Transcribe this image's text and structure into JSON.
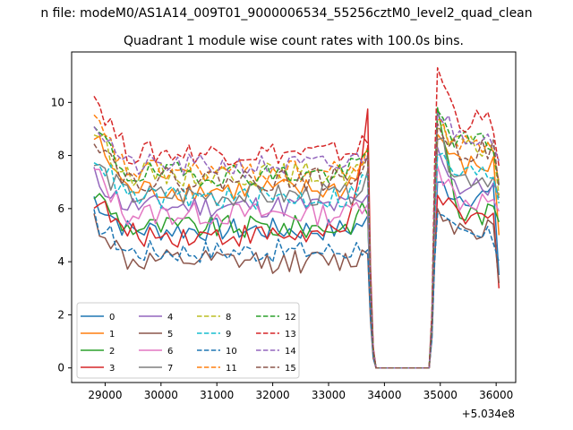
{
  "figure": {
    "suptitle": "n file: modeM0/AS1A14_009T01_9000006534_55256cztM0_level2_quad_clean",
    "offset_label": "+5.034e8"
  },
  "chart_data": {
    "type": "line",
    "title": "Quadrant 1 module wise count rates with 100.0s bins.",
    "xlabel": "",
    "ylabel": "",
    "x_offset": 503400000,
    "xlim": [
      28400,
      36350
    ],
    "ylim": [
      -0.55,
      11.9
    ],
    "xticks": [
      29000,
      30000,
      31000,
      32000,
      33000,
      34000,
      35000,
      36000
    ],
    "xtick_labels": [
      "29000",
      "30000",
      "31000",
      "32000",
      "33000",
      "34000",
      "35000",
      "36000"
    ],
    "yticks": [
      0,
      2,
      4,
      6,
      8,
      10
    ],
    "ytick_labels": [
      "0",
      "2",
      "4",
      "6",
      "8",
      "10"
    ],
    "grid": false,
    "legend_placement": "lower-left",
    "legend_columns": 4,
    "series": [
      {
        "name": "0",
        "color": "#1f77b4",
        "style": "solid",
        "level_first": 6.4,
        "level_main": 5.2,
        "level_end": 5.5,
        "level_second": 6.5,
        "spike": 7.0,
        "last": 3.5
      },
      {
        "name": "1",
        "color": "#ff7f0e",
        "style": "solid",
        "level_first": 8.7,
        "level_main": 6.7,
        "level_end": 8.2,
        "level_second": 7.6,
        "spike": 8.8,
        "last": 5.0
      },
      {
        "name": "2",
        "color": "#2ca02c",
        "style": "solid",
        "level_first": 6.6,
        "level_main": 5.3,
        "level_end": 6.0,
        "level_second": 5.8,
        "spike": 9.8,
        "last": 5.5
      },
      {
        "name": "3",
        "color": "#d62728",
        "style": "solid",
        "level_first": 6.4,
        "level_main": 5.0,
        "level_end": 9.3,
        "level_second": 5.6,
        "spike": 6.5,
        "last": 3.0
      },
      {
        "name": "4",
        "color": "#9467bd",
        "style": "solid",
        "level_first": 7.2,
        "level_main": 6.1,
        "level_end": 6.3,
        "level_second": 6.8,
        "spike": 8.3,
        "last": 6.5
      },
      {
        "name": "5",
        "color": "#8c564b",
        "style": "solid",
        "level_first": 5.6,
        "level_main": 4.0,
        "level_end": 4.3,
        "level_second": 5.3,
        "spike": 6.0,
        "last": 3.2
      },
      {
        "name": "6",
        "color": "#e377c2",
        "style": "solid",
        "level_first": 7.4,
        "level_main": 5.8,
        "level_end": 6.4,
        "level_second": 6.3,
        "spike": 7.6,
        "last": 5.9
      },
      {
        "name": "7",
        "color": "#7f7f7f",
        "style": "solid",
        "level_first": 7.7,
        "level_main": 6.5,
        "level_end": 7.0,
        "level_second": 7.2,
        "spike": 8.6,
        "last": 6.4
      },
      {
        "name": "8",
        "color": "#bcbd22",
        "style": "dashed",
        "level_first": 9.0,
        "level_main": 7.3,
        "level_end": 7.7,
        "level_second": 8.3,
        "spike": 9.0,
        "last": 6.5
      },
      {
        "name": "9",
        "color": "#17becf",
        "style": "dashed",
        "level_first": 8.1,
        "level_main": 6.4,
        "level_end": 7.2,
        "level_second": 7.3,
        "spike": 8.0,
        "last": 6.2
      },
      {
        "name": "10",
        "color": "#1f77b4",
        "style": "dashed",
        "level_first": 5.6,
        "level_main": 4.4,
        "level_end": 4.7,
        "level_second": 4.9,
        "spike": 5.8,
        "last": 4.0
      },
      {
        "name": "11",
        "color": "#ff7f0e",
        "style": "dashed",
        "level_first": 9.3,
        "level_main": 7.4,
        "level_end": 7.9,
        "level_second": 8.4,
        "spike": 9.4,
        "last": 7.0
      },
      {
        "name": "12",
        "color": "#2ca02c",
        "style": "dashed",
        "level_first": 9.0,
        "level_main": 7.3,
        "level_end": 8.0,
        "level_second": 8.5,
        "spike": 9.7,
        "last": 6.9
      },
      {
        "name": "13",
        "color": "#d62728",
        "style": "dashed",
        "level_first": 10.3,
        "level_main": 8.1,
        "level_end": 8.5,
        "level_second": 9.3,
        "spike": 11.3,
        "last": 7.6
      },
      {
        "name": "14",
        "color": "#9467bd",
        "style": "dashed",
        "level_first": 9.3,
        "level_main": 7.6,
        "level_end": 8.2,
        "level_second": 8.8,
        "spike": 9.6,
        "last": 7.8
      },
      {
        "name": "15",
        "color": "#8c564b",
        "style": "dashed",
        "level_first": 8.8,
        "level_main": 7.1,
        "level_end": 7.6,
        "level_second": 8.2,
        "spike": 9.2,
        "last": 6.8
      }
    ],
    "segments": {
      "first_start": 28800,
      "first_end": 33700,
      "drop_points": [
        [
          33750,
          2.5
        ],
        [
          33800,
          0.5
        ],
        [
          33850,
          0.0
        ]
      ],
      "gap_end": 34800,
      "rise_points": [
        [
          34850,
          1.5
        ],
        [
          34900,
          5.5
        ]
      ],
      "second_start": 34950,
      "second_end": 36050,
      "step": 100
    }
  }
}
